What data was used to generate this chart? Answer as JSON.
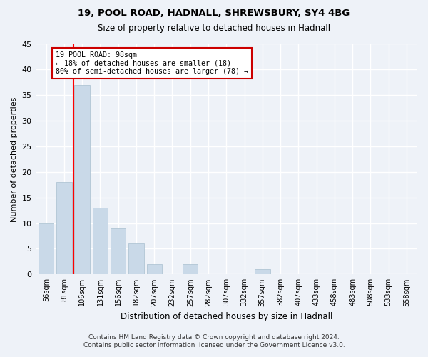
{
  "title1": "19, POOL ROAD, HADNALL, SHREWSBURY, SY4 4BG",
  "title2": "Size of property relative to detached houses in Hadnall",
  "xlabel": "Distribution of detached houses by size in Hadnall",
  "ylabel": "Number of detached properties",
  "categories": [
    "56sqm",
    "81sqm",
    "106sqm",
    "131sqm",
    "156sqm",
    "182sqm",
    "207sqm",
    "232sqm",
    "257sqm",
    "282sqm",
    "307sqm",
    "332sqm",
    "357sqm",
    "382sqm",
    "407sqm",
    "433sqm",
    "458sqm",
    "483sqm",
    "508sqm",
    "533sqm",
    "558sqm"
  ],
  "values": [
    10,
    18,
    37,
    13,
    9,
    6,
    2,
    0,
    2,
    0,
    0,
    0,
    1,
    0,
    0,
    0,
    0,
    0,
    0,
    0,
    0
  ],
  "bar_color": "#c9d9e8",
  "bar_edge_color": "#a8bfcf",
  "vline_x": 1.5,
  "annotation_line1": "19 POOL ROAD: 98sqm",
  "annotation_line2": "← 18% of detached houses are smaller (18)",
  "annotation_line3": "80% of semi-detached houses are larger (78) →",
  "annotation_box_color": "#ffffff",
  "annotation_box_edge": "#cc0000",
  "ylim": [
    0,
    45
  ],
  "yticks": [
    0,
    5,
    10,
    15,
    20,
    25,
    30,
    35,
    40,
    45
  ],
  "bg_color": "#eef2f8",
  "grid_color": "#ffffff",
  "footer1": "Contains HM Land Registry data © Crown copyright and database right 2024.",
  "footer2": "Contains public sector information licensed under the Government Licence v3.0."
}
